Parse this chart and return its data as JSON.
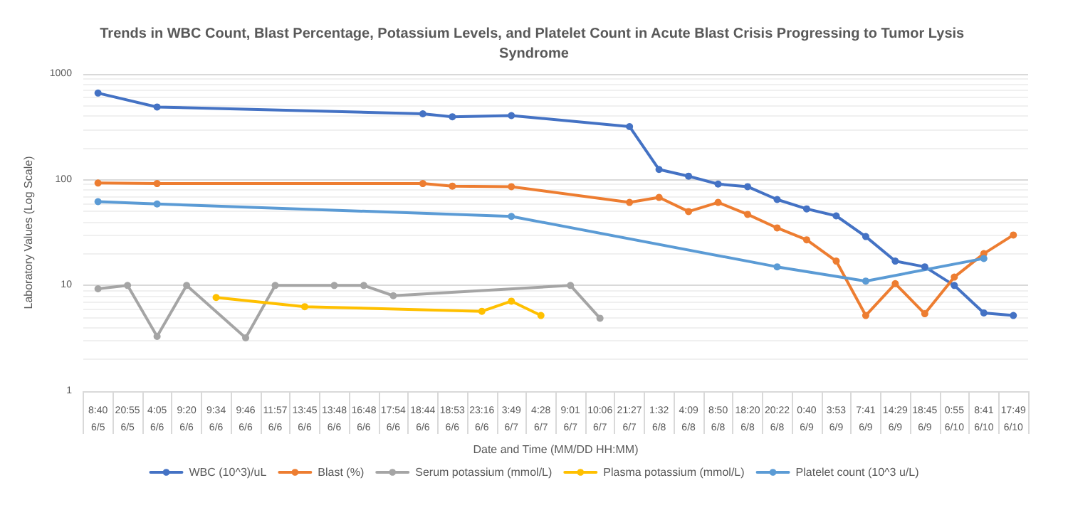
{
  "chart_data": {
    "type": "line",
    "title": "Trends in WBC Count, Blast Percentage, Potassium Levels, and Platelet Count in Acute Blast Crisis Progressing to Tumor Lysis Syndrome",
    "xlabel": "Date and Time (MM/DD HH:MM)",
    "ylabel": "Laboratory Values (Log Scale)",
    "categories": [
      "8:40\n6/5",
      "20:55\n6/5",
      "4:05\n6/6",
      "9:20\n6/6",
      "9:34\n6/6",
      "9:46\n6/6",
      "11:57\n6/6",
      "13:45\n6/6",
      "13:48\n6/6",
      "16:48\n6/6",
      "17:54\n6/6",
      "18:44\n6/6",
      "18:53\n6/6",
      "23:16\n6/6",
      "3:49\n6/7",
      "4:28\n6/7",
      "9:01\n6/7",
      "10:06\n6/7",
      "21:27\n6/7",
      "1:32\n6/8",
      "4:09\n6/8",
      "8:50\n6/8",
      "18:20\n6/8",
      "20:22\n6/8",
      "0:40\n6/9",
      "3:53\n6/9",
      "7:41\n6/9",
      "14:29\n6/9",
      "18:45\n6/9",
      "0:55\n6/10",
      "8:41\n6/10",
      "17:49\n6/10"
    ],
    "series": [
      {
        "name": "WBC (10^3)/uL",
        "color": "#4472c4",
        "values": [
          660,
          null,
          487,
          null,
          null,
          null,
          null,
          null,
          null,
          null,
          null,
          420,
          394,
          null,
          404,
          null,
          null,
          null,
          318,
          125,
          108,
          91,
          86,
          65,
          53,
          45.5,
          29,
          17,
          15,
          10,
          5.5,
          5.2
        ]
      },
      {
        "name": "Blast (%)",
        "color": "#ed7d31",
        "values": [
          93,
          null,
          92,
          null,
          null,
          null,
          null,
          null,
          null,
          null,
          null,
          92,
          87,
          null,
          86,
          null,
          null,
          null,
          61,
          68,
          50,
          61,
          47,
          35,
          27,
          17,
          5.2,
          10.4,
          5.4,
          12,
          20,
          30
        ]
      },
      {
        "name": "Serum potassium (mmol/L)",
        "color": "#a5a5a5",
        "values": [
          9.3,
          10,
          3.3,
          10,
          null,
          3.2,
          10,
          null,
          10,
          10,
          8,
          null,
          null,
          null,
          null,
          null,
          10,
          4.9,
          null,
          null,
          null,
          null,
          null,
          null,
          null,
          null,
          null,
          null,
          null,
          null,
          null,
          null
        ]
      },
      {
        "name": "Plasma potassium (mmol/L)",
        "color": "#ffc000",
        "values": [
          null,
          null,
          null,
          null,
          7.7,
          null,
          null,
          6.3,
          null,
          null,
          null,
          null,
          null,
          5.7,
          7.1,
          5.2,
          null,
          null,
          null,
          null,
          null,
          null,
          null,
          null,
          null,
          null,
          null,
          null,
          null,
          null,
          null,
          null
        ]
      },
      {
        "name": "Platelet count (10^3 u/L)",
        "color": "#5b9bd5",
        "values": [
          62,
          null,
          59,
          null,
          null,
          null,
          null,
          null,
          null,
          null,
          null,
          null,
          null,
          null,
          45,
          null,
          null,
          null,
          null,
          null,
          null,
          null,
          null,
          15,
          null,
          null,
          11,
          null,
          null,
          null,
          18,
          null
        ]
      }
    ],
    "log": true,
    "ylim": [
      1,
      1000
    ],
    "yticks": [
      1,
      10,
      100,
      1000
    ],
    "grid": "y",
    "legend": "bottom",
    "marker": "circle",
    "line_style": "solid"
  }
}
